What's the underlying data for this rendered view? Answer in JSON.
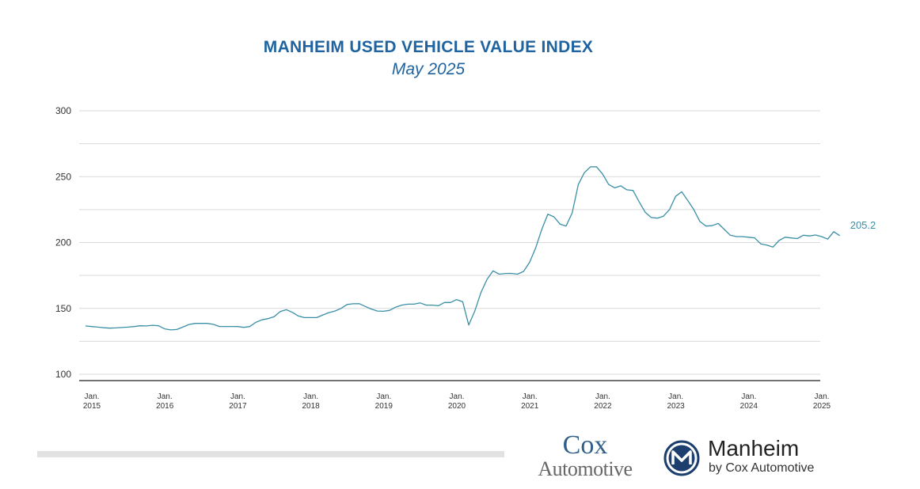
{
  "colors": {
    "title": "#1f64a0",
    "line": "#3a8fa6",
    "grid": "#d9d9d9",
    "axis": "#444444",
    "tick": "#333333"
  },
  "chart_data": {
    "type": "line",
    "title": "MANHEIM USED VEHICLE VALUE INDEX",
    "subtitle": "May 2025",
    "ylim": [
      100,
      300
    ],
    "yticks": [
      100,
      150,
      200,
      250,
      300
    ],
    "grid": true,
    "x_start": "2015-01",
    "xticks": [
      {
        "month_index": 0,
        "label": [
          "Jan.",
          "2015"
        ]
      },
      {
        "month_index": 12,
        "label": [
          "Jan.",
          "2016"
        ]
      },
      {
        "month_index": 24,
        "label": [
          "Jan.",
          "2017"
        ]
      },
      {
        "month_index": 36,
        "label": [
          "Jan.",
          "2018"
        ]
      },
      {
        "month_index": 48,
        "label": [
          "Jan.",
          "2019"
        ]
      },
      {
        "month_index": 60,
        "label": [
          "Jan.",
          "2020"
        ]
      },
      {
        "month_index": 72,
        "label": [
          "Jan.",
          "2021"
        ]
      },
      {
        "month_index": 84,
        "label": [
          "Jan.",
          "2022"
        ]
      },
      {
        "month_index": 96,
        "label": [
          "Jan.",
          "2023"
        ]
      },
      {
        "month_index": 108,
        "label": [
          "Jan.",
          "2024"
        ]
      },
      {
        "month_index": 120,
        "label": [
          "Jan.",
          "2025"
        ]
      }
    ],
    "series": [
      {
        "values": [
          136.7,
          136.2,
          135.8,
          135.3,
          135.0,
          135.2,
          135.5,
          135.8,
          136.2,
          136.8,
          136.7,
          137.2,
          136.8,
          134.5,
          133.7,
          134.0,
          135.8,
          137.8,
          138.6,
          138.6,
          138.6,
          137.9,
          136.3,
          136.3,
          136.3,
          136.2,
          135.6,
          136.2,
          139.4,
          141.3,
          142.2,
          143.7,
          147.6,
          149.0,
          147.0,
          144.2,
          143.0,
          143.0,
          143.0,
          145.0,
          146.8,
          148.0,
          150.0,
          153.0,
          153.5,
          153.6,
          151.5,
          149.5,
          148.0,
          147.8,
          148.5,
          151.0,
          152.5,
          153.2,
          153.2,
          154.2,
          152.5,
          152.5,
          152.0,
          154.5,
          154.5,
          156.7,
          155.0,
          137.4,
          148.0,
          162.0,
          172.0,
          178.5,
          176.0,
          176.5,
          176.6,
          176.0,
          178.0,
          185.0,
          196.0,
          210.0,
          221.5,
          219.5,
          214.0,
          212.5,
          222.5,
          244.0,
          253.0,
          257.4,
          257.5,
          252.0,
          244.0,
          241.5,
          243.0,
          240.0,
          239.5,
          231.0,
          223.0,
          219.0,
          218.5,
          220.0,
          225.0,
          235.0,
          238.5,
          232.0,
          225.0,
          216.0,
          212.5,
          212.8,
          214.5,
          210.0,
          205.5,
          204.5,
          204.5,
          204.0,
          203.5,
          199.0,
          198.0,
          196.5,
          201.5,
          204.0,
          203.5,
          203.0,
          205.5,
          205.0,
          205.7,
          204.5,
          202.6,
          208.2,
          205.2
        ],
        "end_label": "205.2"
      }
    ]
  },
  "logos": {
    "cox_line1": "Cox",
    "cox_line2": "Automotive",
    "manheim_name": "Manheim",
    "manheim_sub": "by Cox Automotive"
  }
}
